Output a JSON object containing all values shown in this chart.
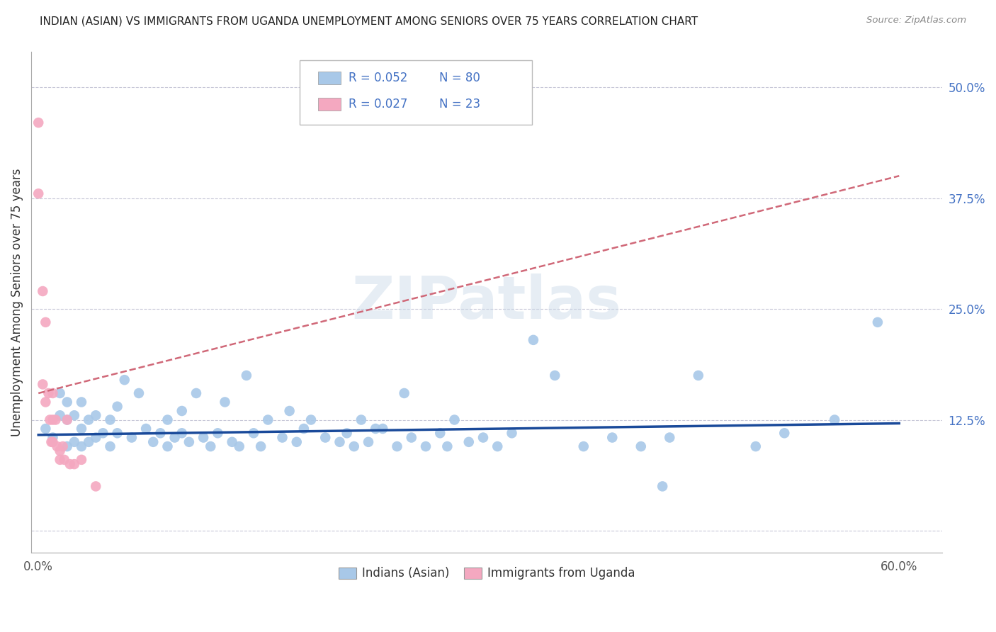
{
  "title": "INDIAN (ASIAN) VS IMMIGRANTS FROM UGANDA UNEMPLOYMENT AMONG SENIORS OVER 75 YEARS CORRELATION CHART",
  "source": "Source: ZipAtlas.com",
  "ylabel": "Unemployment Among Seniors over 75 years",
  "y_ticks_right": [
    0.0,
    0.125,
    0.25,
    0.375,
    0.5
  ],
  "y_tick_labels_right": [
    "",
    "12.5%",
    "25.0%",
    "37.5%",
    "50.0%"
  ],
  "xlim": [
    -0.005,
    0.63
  ],
  "ylim": [
    -0.025,
    0.54
  ],
  "legend_r1": "R = 0.052",
  "legend_n1": "N = 80",
  "legend_r2": "R = 0.027",
  "legend_n2": "N = 23",
  "color_blue": "#a8c8e8",
  "color_pink": "#f4a8c0",
  "trendline_blue_color": "#1a4a9a",
  "trendline_pink_color": "#d06878",
  "watermark": "ZIPatlas",
  "blue_x": [
    0.005,
    0.01,
    0.015,
    0.015,
    0.02,
    0.02,
    0.02,
    0.025,
    0.025,
    0.03,
    0.03,
    0.03,
    0.035,
    0.035,
    0.04,
    0.04,
    0.045,
    0.05,
    0.05,
    0.055,
    0.055,
    0.06,
    0.065,
    0.07,
    0.075,
    0.08,
    0.085,
    0.09,
    0.09,
    0.095,
    0.1,
    0.1,
    0.105,
    0.11,
    0.115,
    0.12,
    0.125,
    0.13,
    0.135,
    0.14,
    0.145,
    0.15,
    0.155,
    0.16,
    0.17,
    0.175,
    0.18,
    0.185,
    0.19,
    0.2,
    0.21,
    0.215,
    0.22,
    0.225,
    0.23,
    0.235,
    0.24,
    0.25,
    0.255,
    0.26,
    0.27,
    0.28,
    0.285,
    0.29,
    0.3,
    0.31,
    0.32,
    0.33,
    0.345,
    0.36,
    0.38,
    0.4,
    0.42,
    0.435,
    0.44,
    0.46,
    0.5,
    0.52,
    0.555,
    0.585
  ],
  "blue_y": [
    0.115,
    0.105,
    0.13,
    0.155,
    0.095,
    0.125,
    0.145,
    0.1,
    0.13,
    0.095,
    0.115,
    0.145,
    0.1,
    0.125,
    0.105,
    0.13,
    0.11,
    0.095,
    0.125,
    0.11,
    0.14,
    0.17,
    0.105,
    0.155,
    0.115,
    0.1,
    0.11,
    0.095,
    0.125,
    0.105,
    0.11,
    0.135,
    0.1,
    0.155,
    0.105,
    0.095,
    0.11,
    0.145,
    0.1,
    0.095,
    0.175,
    0.11,
    0.095,
    0.125,
    0.105,
    0.135,
    0.1,
    0.115,
    0.125,
    0.105,
    0.1,
    0.11,
    0.095,
    0.125,
    0.1,
    0.115,
    0.115,
    0.095,
    0.155,
    0.105,
    0.095,
    0.11,
    0.095,
    0.125,
    0.1,
    0.105,
    0.095,
    0.11,
    0.215,
    0.175,
    0.095,
    0.105,
    0.095,
    0.05,
    0.105,
    0.175,
    0.095,
    0.11,
    0.125,
    0.235
  ],
  "pink_x": [
    0.0,
    0.0,
    0.003,
    0.003,
    0.005,
    0.005,
    0.007,
    0.008,
    0.009,
    0.01,
    0.01,
    0.01,
    0.012,
    0.013,
    0.015,
    0.015,
    0.017,
    0.018,
    0.02,
    0.022,
    0.025,
    0.03,
    0.04
  ],
  "pink_y": [
    0.46,
    0.38,
    0.27,
    0.165,
    0.145,
    0.235,
    0.155,
    0.125,
    0.1,
    0.155,
    0.125,
    0.1,
    0.125,
    0.095,
    0.09,
    0.08,
    0.095,
    0.08,
    0.125,
    0.075,
    0.075,
    0.08,
    0.05
  ],
  "blue_trend_x": [
    0.0,
    0.6
  ],
  "blue_trend_y": [
    0.108,
    0.121
  ],
  "pink_trend_x": [
    0.0,
    0.6
  ],
  "pink_trend_y": [
    0.155,
    0.4
  ]
}
